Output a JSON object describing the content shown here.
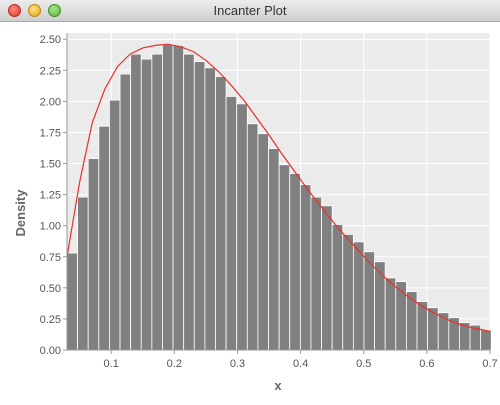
{
  "window": {
    "title": "Incanter Plot"
  },
  "chart_data": {
    "type": "bar",
    "title": "",
    "xlabel": "x",
    "ylabel": "Density",
    "xlim": [
      0.03,
      0.7
    ],
    "ylim": [
      0,
      2.55
    ],
    "xticks": [
      0.1,
      0.2,
      0.3,
      0.4,
      0.5,
      0.6,
      0.7
    ],
    "xtick_labels": [
      "0.1",
      "0.2",
      "0.3",
      "0.4",
      "0.5",
      "0.6",
      "0.7"
    ],
    "yticks": [
      0,
      0.25,
      0.5,
      0.75,
      1.0,
      1.25,
      1.5,
      1.75,
      2.0,
      2.25,
      2.5
    ],
    "ytick_labels": [
      "0.00",
      "0.25",
      "0.50",
      "0.75",
      "1.00",
      "1.25",
      "1.50",
      "1.75",
      "2.00",
      "2.25",
      "2.50"
    ],
    "grid": true,
    "bar_color": "#808080",
    "curve_color": "#e8302a",
    "bins": {
      "start": 0.03,
      "width": 0.0168,
      "values": [
        0.78,
        1.23,
        1.54,
        1.8,
        2.01,
        2.22,
        2.38,
        2.34,
        2.38,
        2.46,
        2.45,
        2.38,
        2.32,
        2.27,
        2.2,
        2.04,
        1.98,
        1.82,
        1.74,
        1.62,
        1.49,
        1.42,
        1.33,
        1.23,
        1.16,
        1.01,
        0.93,
        0.87,
        0.79,
        0.71,
        0.58,
        0.55,
        0.47,
        0.39,
        0.34,
        0.3,
        0.26,
        0.22,
        0.2,
        0.16
      ]
    },
    "curve": {
      "x": [
        0.03,
        0.05,
        0.07,
        0.09,
        0.11,
        0.13,
        0.15,
        0.17,
        0.19,
        0.21,
        0.23,
        0.25,
        0.27,
        0.29,
        0.31,
        0.33,
        0.35,
        0.37,
        0.39,
        0.41,
        0.43,
        0.45,
        0.47,
        0.49,
        0.51,
        0.53,
        0.55,
        0.57,
        0.59,
        0.61,
        0.63,
        0.65,
        0.67,
        0.69,
        0.7
      ],
      "y": [
        0.75,
        1.35,
        1.83,
        2.1,
        2.28,
        2.38,
        2.43,
        2.45,
        2.46,
        2.44,
        2.4,
        2.33,
        2.24,
        2.13,
        2.01,
        1.87,
        1.73,
        1.58,
        1.44,
        1.3,
        1.17,
        1.04,
        0.92,
        0.81,
        0.7,
        0.6,
        0.51,
        0.43,
        0.36,
        0.3,
        0.25,
        0.21,
        0.18,
        0.16,
        0.15
      ]
    }
  }
}
